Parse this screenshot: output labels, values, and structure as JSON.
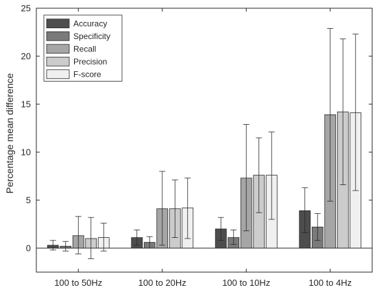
{
  "chart_data": {
    "type": "bar",
    "title": "",
    "xlabel": "",
    "ylabel": "Percentage mean difference",
    "ylim": [
      -2.5,
      25
    ],
    "yticks": [
      0,
      5,
      10,
      15,
      20,
      25
    ],
    "grid": false,
    "legend_position": "top-left",
    "categories": [
      "100 to 50Hz",
      "100 to 20Hz",
      "100 to 10Hz",
      "100 to 4Hz"
    ],
    "series": [
      {
        "name": "Accuracy",
        "color": "#4d4d4d",
        "values": [
          0.3,
          1.1,
          2.0,
          3.9
        ],
        "err_low": [
          -0.2,
          0.3,
          0.8,
          1.6
        ],
        "err_high": [
          0.8,
          1.9,
          3.2,
          6.3
        ]
      },
      {
        "name": "Specificity",
        "color": "#7a7a7a",
        "values": [
          0.2,
          0.6,
          1.1,
          2.2
        ],
        "err_low": [
          -0.3,
          0.0,
          0.4,
          0.8
        ],
        "err_high": [
          0.7,
          1.2,
          1.9,
          3.6
        ]
      },
      {
        "name": "Recall",
        "color": "#a6a6a6",
        "values": [
          1.3,
          4.1,
          7.3,
          13.9
        ],
        "err_low": [
          -0.6,
          0.3,
          1.8,
          4.9
        ],
        "err_high": [
          3.3,
          8.0,
          12.9,
          22.9
        ]
      },
      {
        "name": "Precision",
        "color": "#cccccc",
        "values": [
          1.0,
          4.1,
          7.6,
          14.2
        ],
        "err_low": [
          -1.1,
          1.1,
          3.7,
          6.6
        ],
        "err_high": [
          3.2,
          7.1,
          11.5,
          21.8
        ]
      },
      {
        "name": "F-score",
        "color": "#f0f0f0",
        "values": [
          1.1,
          4.2,
          7.6,
          14.1
        ],
        "err_low": [
          -0.3,
          1.0,
          3.0,
          6.0
        ],
        "err_high": [
          2.6,
          7.3,
          12.1,
          22.3
        ]
      }
    ]
  }
}
